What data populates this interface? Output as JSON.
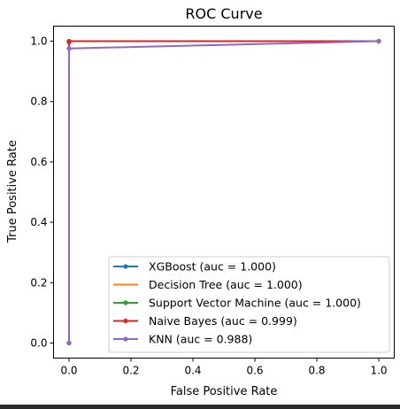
{
  "chart_data": {
    "type": "line",
    "title": "ROC Curve",
    "xlabel": "False Positive Rate",
    "ylabel": "True Positive Rate",
    "xlim": [
      -0.05,
      1.05
    ],
    "ylim": [
      -0.05,
      1.05
    ],
    "xticks": [
      0.0,
      0.2,
      0.4,
      0.6,
      0.8,
      1.0
    ],
    "yticks": [
      0.0,
      0.2,
      0.4,
      0.6,
      0.8,
      1.0
    ],
    "xtick_labels": [
      "0.0",
      "0.2",
      "0.4",
      "0.6",
      "0.8",
      "1.0"
    ],
    "ytick_labels": [
      "0.0",
      "0.2",
      "0.4",
      "0.6",
      "0.8",
      "1.0"
    ],
    "grid": false,
    "legend_position": "lower-right",
    "series": [
      {
        "name": "XGBoost (auc = 1.000)",
        "color": "#1f77b4",
        "marker": true,
        "x": [
          0.0,
          0.0,
          1.0
        ],
        "y": [
          0.0,
          1.0,
          1.0
        ]
      },
      {
        "name": "Decision Tree (auc = 1.000)",
        "color": "#ff7f0e",
        "marker": false,
        "x": [
          0.0,
          0.0,
          1.0
        ],
        "y": [
          0.0,
          1.0,
          1.0
        ]
      },
      {
        "name": "Support Vector Machine (auc = 1.000)",
        "color": "#2ca02c",
        "marker": true,
        "x": [
          0.0,
          0.0,
          1.0
        ],
        "y": [
          0.0,
          1.0,
          1.0
        ]
      },
      {
        "name": "Naive Bayes (auc = 0.999)",
        "color": "#d62728",
        "marker": true,
        "x": [
          0.0,
          0.0,
          0.001,
          1.0
        ],
        "y": [
          0.0,
          0.997,
          1.0,
          1.0
        ]
      },
      {
        "name": "KNN (auc = 0.988)",
        "color": "#9467bd",
        "marker": true,
        "x": [
          0.0,
          0.0,
          1.0
        ],
        "y": [
          0.0,
          0.976,
          1.0
        ]
      }
    ]
  }
}
